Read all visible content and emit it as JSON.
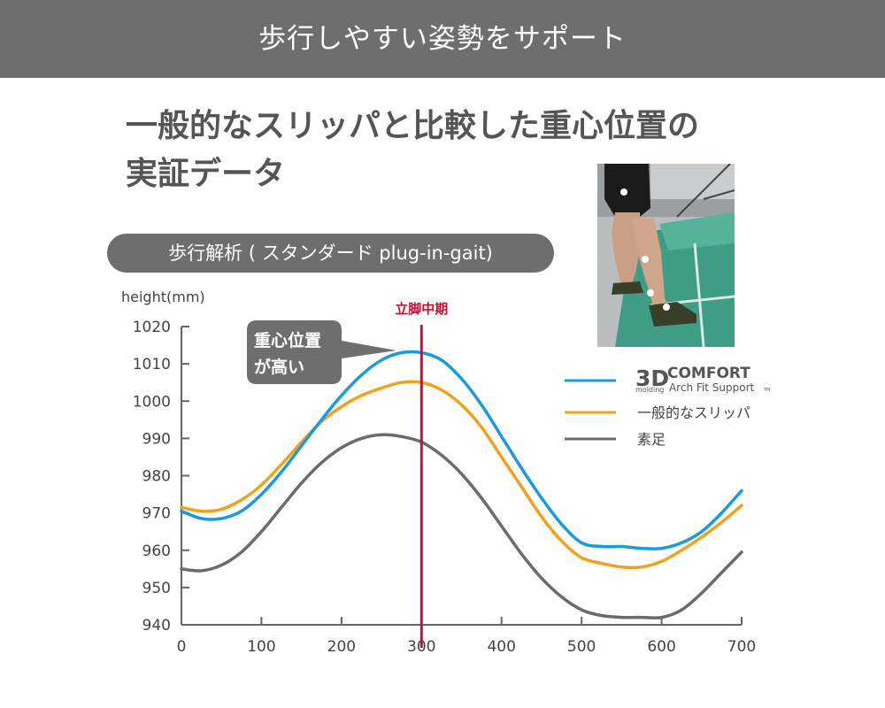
{
  "banner": {
    "title": "歩行しやすい姿勢をサポート"
  },
  "heading": {
    "line1": "一般的なスリッパと比較した重心位置の",
    "line2": "実証データ"
  },
  "section_label": "歩行解析 ( スタンダード plug-in-gait)",
  "callout": {
    "line1": "重心位置",
    "line2": "が高い"
  },
  "marker": {
    "label": "立脚中期",
    "x": 300
  },
  "brand": {
    "big": "3D",
    "word": "COMFORT",
    "sub": "molding",
    "tagline": "Arch Fit Support",
    "tm": "TM"
  },
  "colors": {
    "blue": "#1a9be0",
    "orange": "#f0a21c",
    "gray": "#6b6b6b",
    "red": "#c8102e",
    "banner": "#6e6e6e"
  },
  "chart_data": {
    "type": "line",
    "ylabel": "height(mm)",
    "xlabel": "",
    "xlim": [
      0,
      700
    ],
    "ylim": [
      940,
      1020
    ],
    "x_ticks": [
      0,
      100,
      200,
      300,
      400,
      500,
      600,
      700
    ],
    "y_ticks": [
      940,
      950,
      960,
      970,
      980,
      990,
      1000,
      1010,
      1020
    ],
    "grid": false,
    "legend": "right",
    "x": [
      0,
      25,
      50,
      75,
      100,
      125,
      150,
      175,
      200,
      225,
      250,
      275,
      300,
      325,
      350,
      375,
      400,
      425,
      450,
      475,
      500,
      525,
      550,
      575,
      600,
      625,
      650,
      675,
      700
    ],
    "series": [
      {
        "name": "3D COMFORT Arch Fit Support",
        "color": "#1a9be0",
        "values": [
          970.5,
          968.5,
          968.5,
          970.5,
          975,
          981,
          988,
          995,
          1001.5,
          1007,
          1011,
          1013,
          1013,
          1011,
          1006,
          999,
          990.5,
          982,
          974,
          967,
          962,
          961,
          961,
          960.5,
          960.5,
          962,
          965,
          970,
          976
        ]
      },
      {
        "name": "一般的なスリッパ",
        "color": "#f0a21c",
        "values": [
          971.5,
          970.5,
          971,
          973.5,
          977.5,
          983,
          989,
          994.5,
          998.5,
          1001.5,
          1003.5,
          1005,
          1005,
          1003,
          999,
          993,
          985,
          977,
          969,
          962.5,
          958,
          956.5,
          955.5,
          955.5,
          957,
          960,
          963.5,
          967.5,
          972
        ]
      },
      {
        "name": "素足",
        "color": "#6b6b6b",
        "values": [
          955,
          954.5,
          956,
          959.5,
          965,
          971.5,
          978,
          983.5,
          987.5,
          990,
          991,
          990.5,
          989,
          985.5,
          980.5,
          974,
          966.5,
          959,
          952.5,
          947.5,
          944,
          942.5,
          942,
          942,
          942,
          944,
          948.5,
          954,
          959.5
        ]
      }
    ]
  }
}
